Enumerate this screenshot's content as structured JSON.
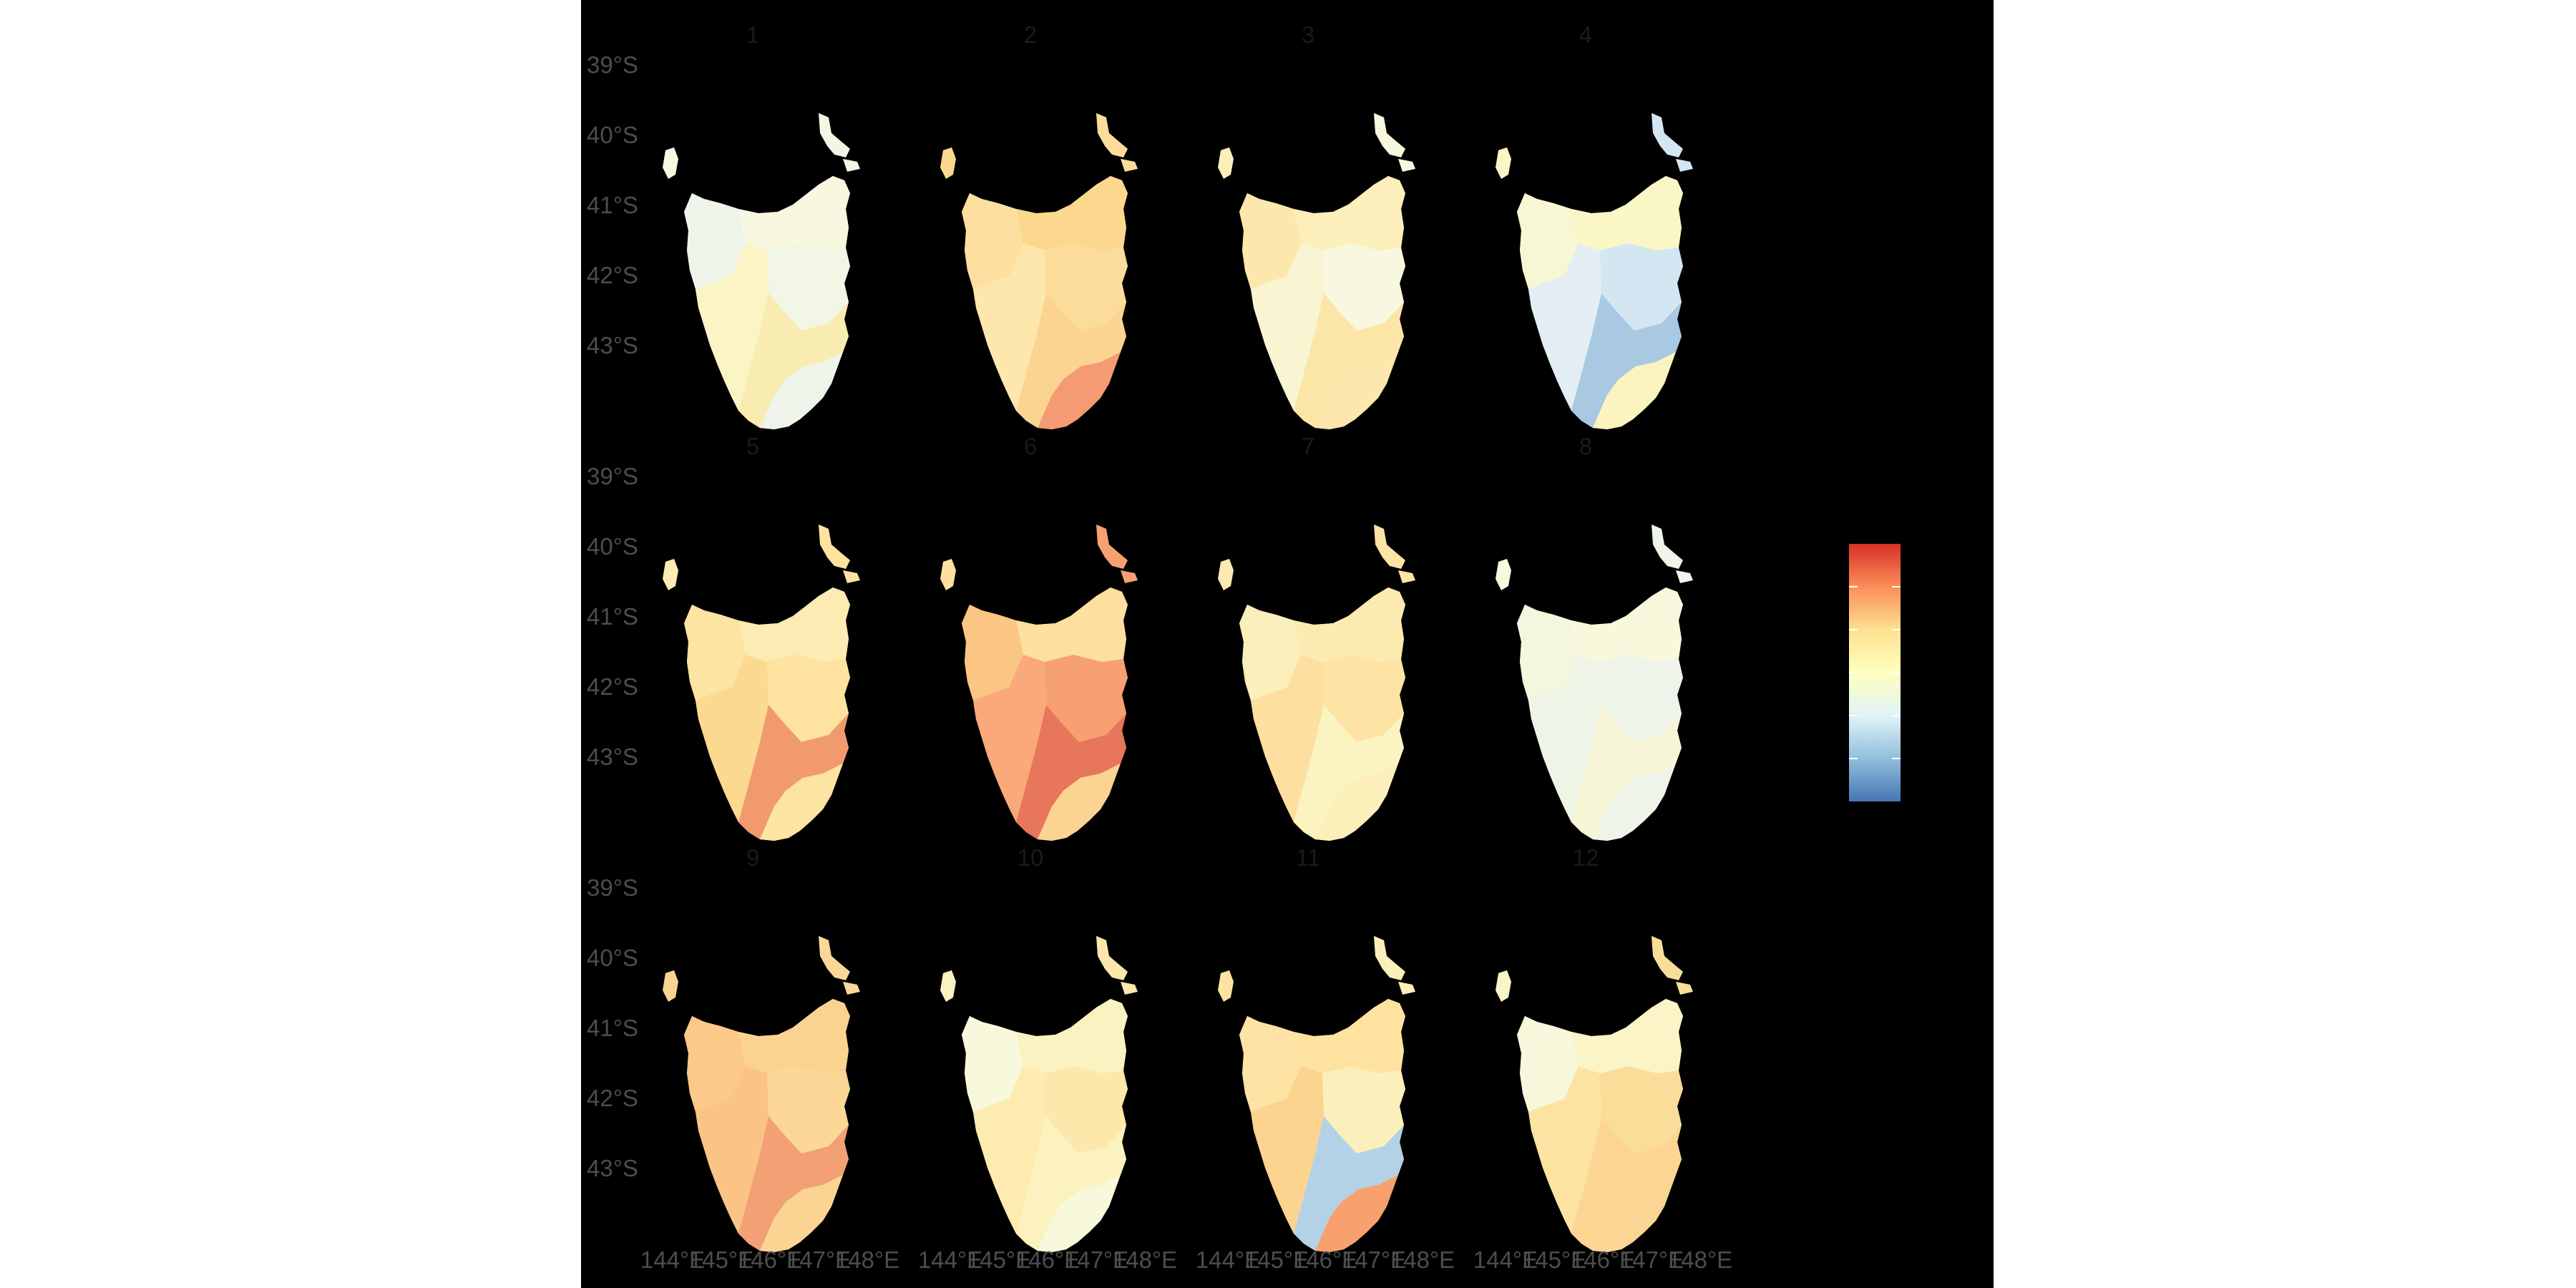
{
  "figure": {
    "type": "faceted choropleth map",
    "region": "Tasmania",
    "background": "#000000",
    "facet_layout": {
      "rows": 3,
      "cols": 4
    }
  },
  "facets": [
    {
      "label": "1",
      "shades": [
        "#eef4ea",
        "#f7f8df",
        "#fbf4c4",
        "#f2f6e4",
        "#f9ecb0",
        "#eef4ea"
      ]
    },
    {
      "label": "2",
      "shades": [
        "#fde0a0",
        "#fcd88f",
        "#fde7ad",
        "#fbdc9a",
        "#fcd492",
        "#f59b73"
      ]
    },
    {
      "label": "3",
      "shades": [
        "#fde7ad",
        "#fcefbb",
        "#f9f5d2",
        "#f7f8df",
        "#fbe6a8",
        "#fde7ad"
      ]
    },
    {
      "label": "4",
      "shades": [
        "#f8f7d4",
        "#fbf6c6",
        "#e2eef3",
        "#d4e6f1",
        "#a9c8e2",
        "#fcf4be"
      ]
    },
    {
      "label": "5",
      "shades": [
        "#fde4a3",
        "#fcebb2",
        "#fcd991",
        "#fde39f",
        "#f19a6e",
        "#fde4a3"
      ]
    },
    {
      "label": "6",
      "shades": [
        "#fbc583",
        "#fde0a0",
        "#f9a97a",
        "#f7a173",
        "#e8765a",
        "#fbd493"
      ]
    },
    {
      "label": "7",
      "shades": [
        "#fbf0bc",
        "#fcebb0",
        "#fde0a0",
        "#fde4a5",
        "#fbf4c0",
        "#fcefba"
      ]
    },
    {
      "label": "8",
      "shades": [
        "#f4f7dd",
        "#f7f8dc",
        "#eff5e6",
        "#eef4ea",
        "#f6f6d6",
        "#eef4ea"
      ]
    },
    {
      "label": "9",
      "shades": [
        "#fbc98a",
        "#fbd391",
        "#fbc486",
        "#fbd898",
        "#f3a074",
        "#fbd493"
      ]
    },
    {
      "label": "10",
      "shades": [
        "#f7f8dc",
        "#fbf2c2",
        "#fdebb0",
        "#fde7aa",
        "#fbf2c0",
        "#f7f8dc"
      ]
    },
    {
      "label": "11",
      "shades": [
        "#fde4a4",
        "#fde39f",
        "#fcd38f",
        "#fbf0bc",
        "#b4d2e7",
        "#f9a06f"
      ]
    },
    {
      "label": "12",
      "shades": [
        "#f6f7db",
        "#fbf4c6",
        "#fde3a1",
        "#fbdd9a",
        "#fcd593",
        "#fbd594"
      ]
    }
  ],
  "axes": {
    "y_ticks": [
      "39°S",
      "40°S",
      "41°S",
      "42°S",
      "43°S"
    ],
    "x_ticks": [
      "144°E",
      "145°E",
      "146°E",
      "147°E",
      "148°E"
    ]
  },
  "legend": {
    "title": "",
    "colorbar": [
      "#4575b4",
      "#91bfdb",
      "#e0f3f8",
      "#ffffbf",
      "#fee090",
      "#fc8d59",
      "#d73027"
    ],
    "placement": "right"
  }
}
